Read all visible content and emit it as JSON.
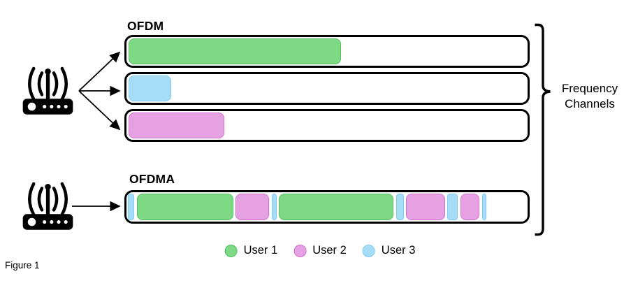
{
  "figure_caption": "Figure 1",
  "brace": {
    "label_line1": "Frequency",
    "label_line2": "Channels"
  },
  "colors": {
    "ink": "#000000",
    "background": "#ffffff"
  },
  "users": [
    {
      "id": "user1",
      "label": "User 1",
      "fill": "#7DD983",
      "stroke": "#55BF61"
    },
    {
      "id": "user2",
      "label": "User 2",
      "fill": "#E6A1E3",
      "stroke": "#D36FCE"
    },
    {
      "id": "user3",
      "label": "User 3",
      "fill": "#A7DCF6",
      "stroke": "#7ECBF1"
    }
  ],
  "ofdm": {
    "label": "OFDM",
    "channels": [
      {
        "user": "user1",
        "width_pct": 53.0
      },
      {
        "user": "user3",
        "width_pct": 10.7
      },
      {
        "user": "user2",
        "width_pct": 23.9
      }
    ]
  },
  "ofdma": {
    "label": "OFDMA",
    "segments": [
      {
        "user": "user3",
        "left_pct": 0.3,
        "width_pct": 1.6
      },
      {
        "user": "user1",
        "left_pct": 2.6,
        "width_pct": 24.0
      },
      {
        "user": "user2",
        "left_pct": 27.2,
        "width_pct": 8.4
      },
      {
        "user": "user3",
        "left_pct": 36.2,
        "width_pct": 1.2
      },
      {
        "user": "user1",
        "left_pct": 38.0,
        "width_pct": 28.6
      },
      {
        "user": "user3",
        "left_pct": 67.2,
        "width_pct": 1.9
      },
      {
        "user": "user2",
        "left_pct": 69.7,
        "width_pct": 9.8
      },
      {
        "user": "user3",
        "left_pct": 80.0,
        "width_pct": 2.5
      },
      {
        "user": "user2",
        "left_pct": 83.2,
        "width_pct": 4.8
      },
      {
        "user": "user3",
        "left_pct": 88.6,
        "width_pct": 1.2
      }
    ]
  }
}
